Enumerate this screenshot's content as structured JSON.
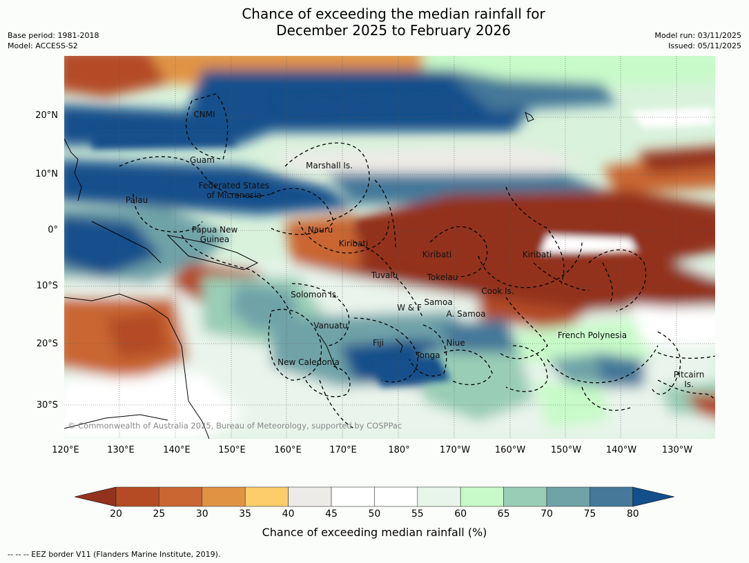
{
  "title": {
    "line1": "Chance of exceeding the median rainfall for",
    "line2": "December 2025 to February 2026"
  },
  "meta_left": {
    "base_period": "Base period: 1981-2018",
    "model": "Model: ACCESS-S2"
  },
  "meta_right": {
    "model_run": "Model run: 03/11/2025",
    "issued": "Issued: 05/11/2025"
  },
  "lat_labels": [
    "20°N",
    "10°N",
    "0°",
    "10°S",
    "20°S",
    "30°S"
  ],
  "lon_labels": [
    "120°E",
    "130°E",
    "140°E",
    "150°E",
    "160°E",
    "170°E",
    "180°",
    "170°W",
    "160°W",
    "150°W",
    "140°W",
    "130°W"
  ],
  "regions": {
    "cnmi": "CNMI",
    "guam": "Guam",
    "marshall": "Marshall Is.",
    "fsm_1": "Federated States",
    "fsm_2": "of Micronesia",
    "palau": "Palau",
    "png_1": "Papua New",
    "png_2": "Guinea",
    "nauru": "Nauru",
    "kiribati_w": "Kiribati",
    "kiribati_c": "Kiribati",
    "kiribati_e": "Kiribati",
    "tuvalu": "Tuvalu",
    "tokelau": "Tokelau",
    "cook": "Cook Is.",
    "solomon": "Solomon Is.",
    "wallis": "W & F",
    "samoa": "Samoa",
    "asamoa": "A. Samoa",
    "vanuatu": "Vanuatu",
    "fiji": "Fiji",
    "niue": "Niue",
    "tonga": "Tonga",
    "new_caledonia": "New Caledonia",
    "french_polynesia": "French Polynesia",
    "pitcairn_1": "Pitcairn",
    "pitcairn_2": "Is."
  },
  "copyright": "© Commonwealth of Australia 2025, Bureau of Meteorology, supported by COSPPac",
  "colorbar": {
    "ticks": [
      "20",
      "25",
      "30",
      "35",
      "40",
      "45",
      "50",
      "55",
      "60",
      "65",
      "70",
      "75",
      "80"
    ],
    "colors": [
      "#93321e",
      "#b44b25",
      "#c96632",
      "#e19344",
      "#fdcd6a",
      "#edebe7",
      "#ffffff",
      "#ffffff",
      "#e7f6e9",
      "#c8fac9",
      "#9acdb6",
      "#6fa3a8",
      "#457899",
      "#124f8b"
    ],
    "label": "Chance of exceeding median rainfall (%)"
  },
  "footer": "--  --  -- EEZ border V11 (Flanders Marine Institute, 2019)."
}
